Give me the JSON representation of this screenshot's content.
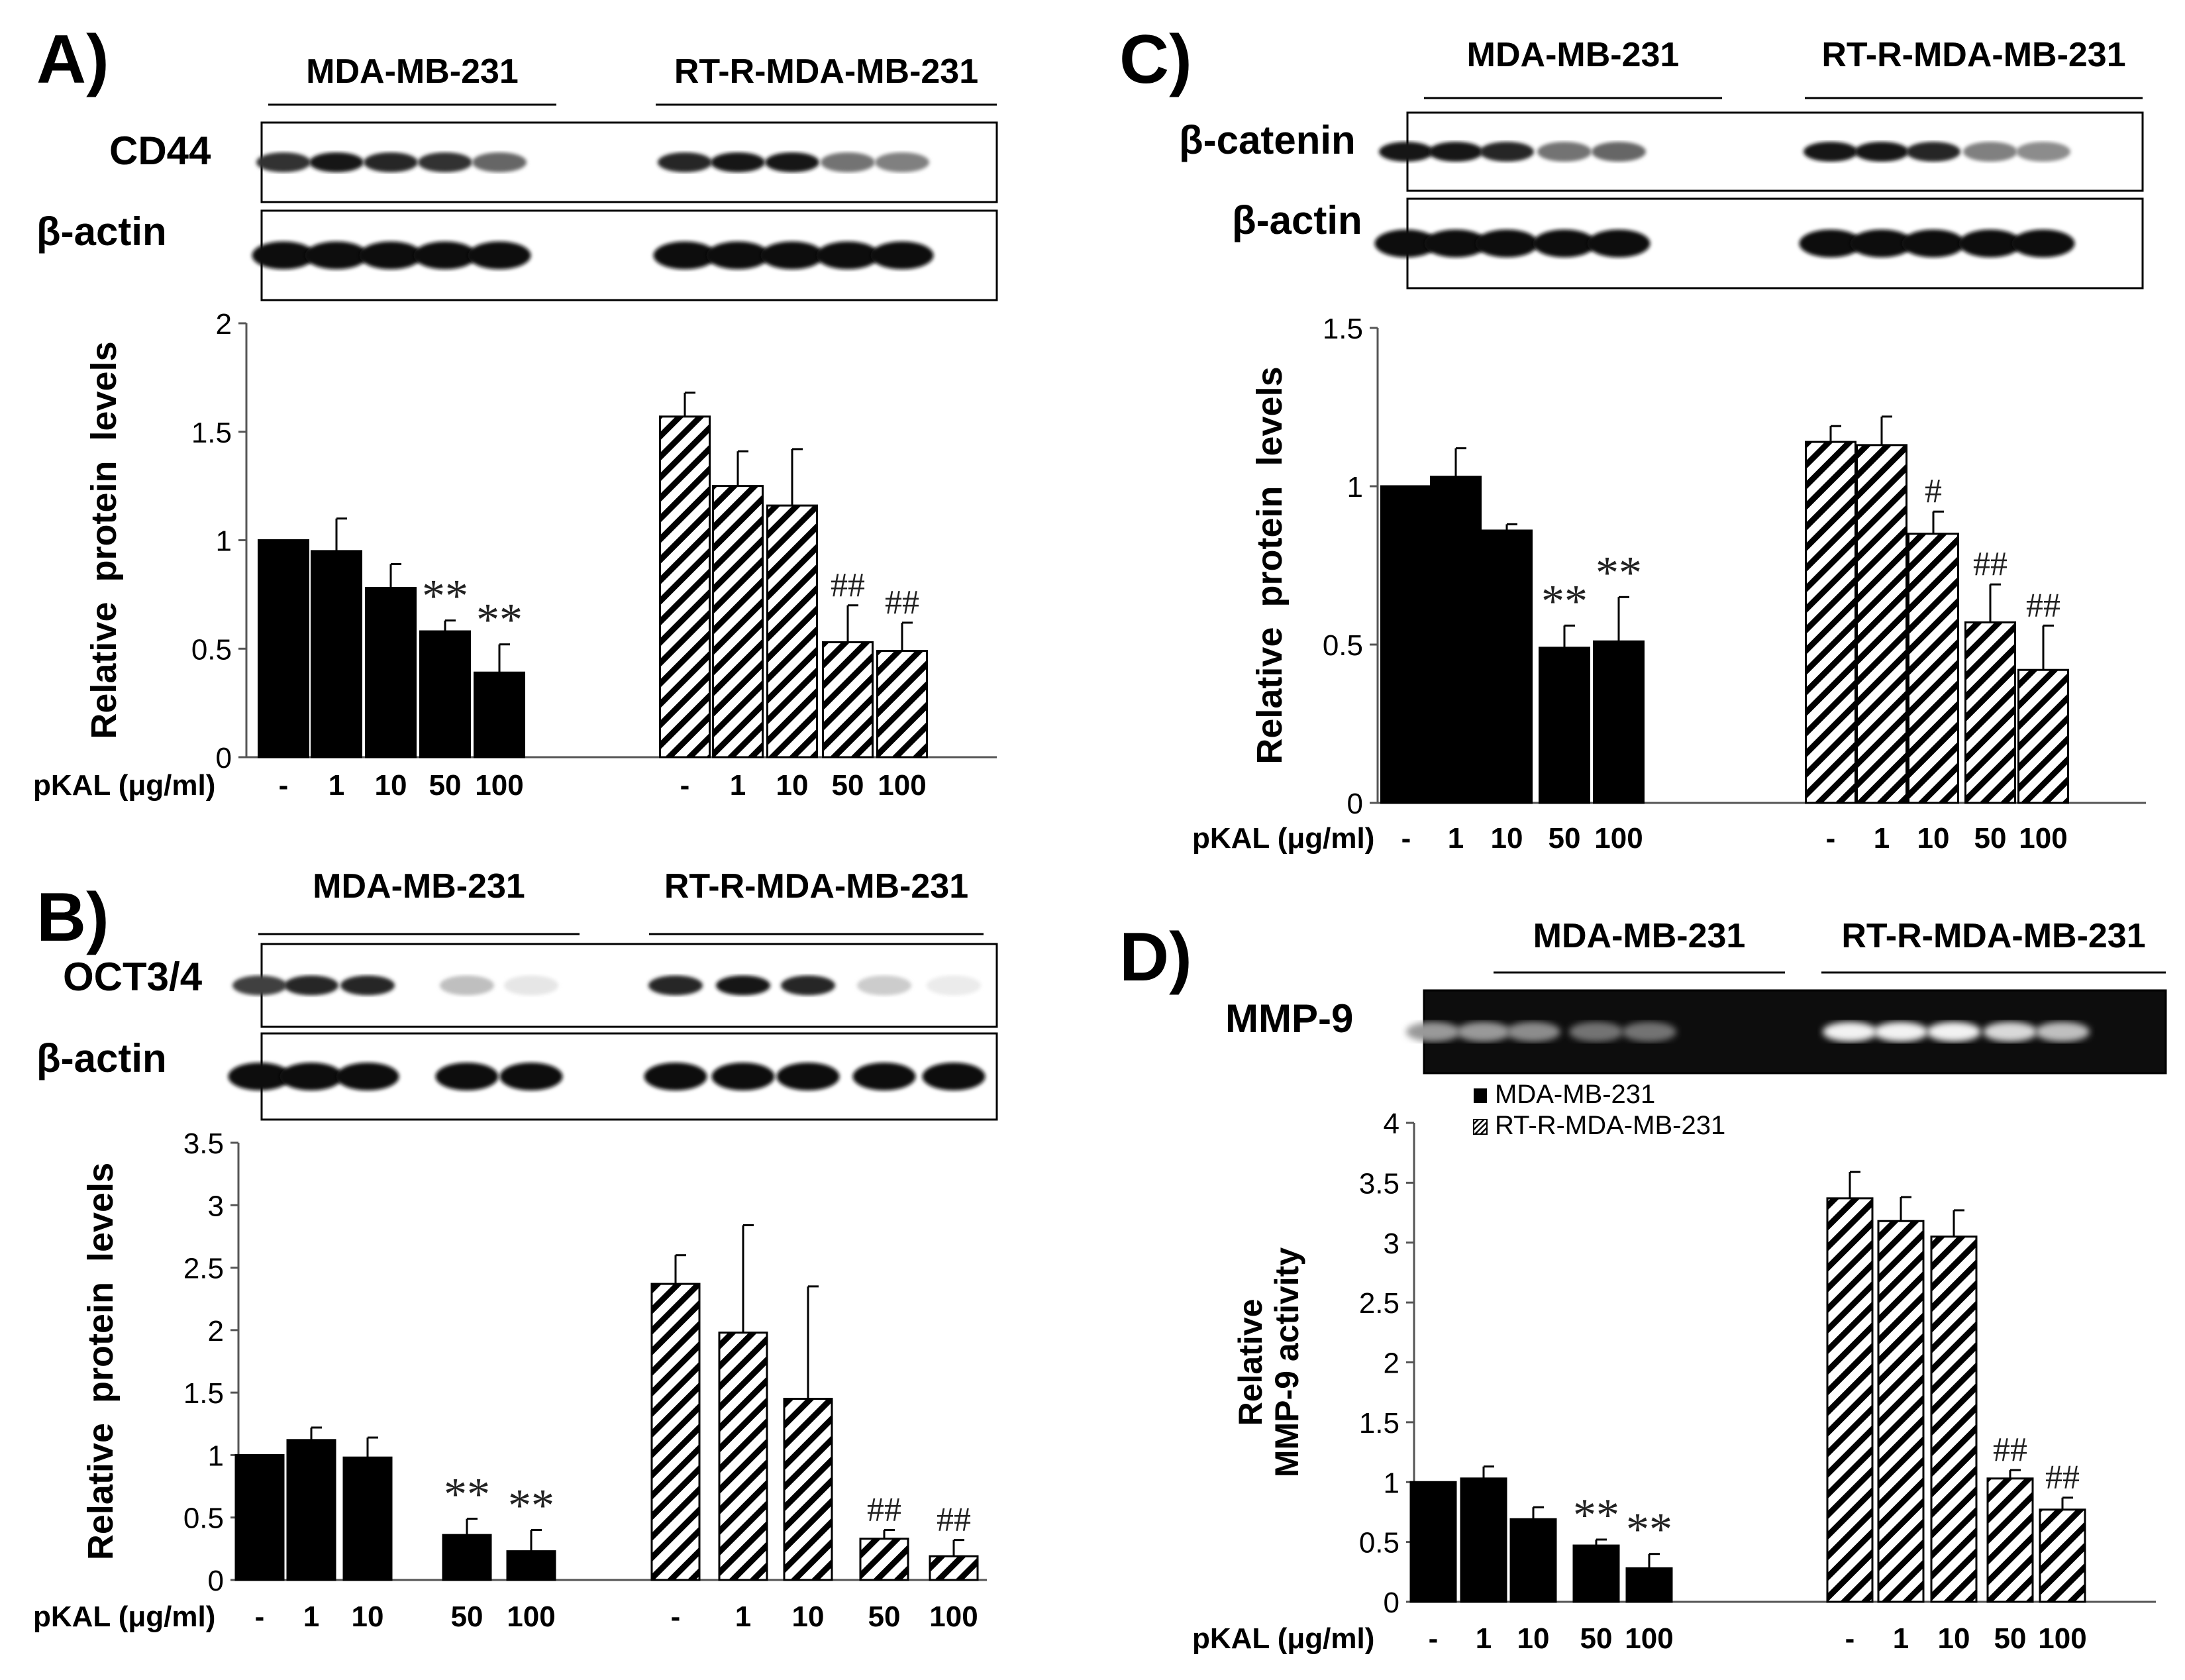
{
  "chart_data": [
    {
      "panel": "A)",
      "type": "bar",
      "blot": {
        "rows": [
          "CD44",
          "β-actin"
        ],
        "bands_a": [
          0.8,
          0.9,
          0.85,
          0.8,
          0.6
        ],
        "bands_b": [
          0.85,
          0.9,
          0.9,
          0.55,
          0.5
        ]
      },
      "groups": [
        "MDA-MB-231",
        "RT-R-MDA-MB-231"
      ],
      "xaxis_title": "pKAL (μg/ml)",
      "categories": [
        "-",
        "1",
        "10",
        "50",
        "100"
      ],
      "ylabel": [
        "Relative",
        "protein",
        "levels"
      ],
      "ylim": [
        0,
        2
      ],
      "yticks": [
        "0",
        "0.5",
        "1",
        "1.5",
        "2"
      ],
      "tick_values": [
        0,
        0.5,
        1,
        1.5,
        2
      ],
      "series": [
        {
          "values": [
            1.0,
            0.95,
            0.78,
            0.58,
            0.39
          ],
          "errors": [
            0,
            0.15,
            0.11,
            0.05,
            0.13
          ],
          "marks": [
            "",
            "",
            "",
            "**",
            "**"
          ]
        },
        {
          "values": [
            1.57,
            1.25,
            1.16,
            0.53,
            0.49
          ],
          "errors": [
            0.11,
            0.16,
            0.26,
            0.17,
            0.13
          ],
          "marks": [
            "",
            "",
            "",
            "##",
            "##"
          ]
        }
      ]
    },
    {
      "panel": "B)",
      "type": "bar",
      "blot": {
        "rows": [
          "OCT3/4",
          "β-actin"
        ],
        "bands_a": [
          0.75,
          0.85,
          0.85,
          0.25,
          0.1
        ],
        "bands_b": [
          0.85,
          0.9,
          0.85,
          0.2,
          0.08
        ]
      },
      "groups": [
        "MDA-MB-231",
        "RT-R-MDA-MB-231"
      ],
      "xaxis_title": "pKAL (μg/ml)",
      "categories": [
        "-",
        "1",
        "10",
        "50",
        "100"
      ],
      "ylabel": [
        "Relative",
        "protein",
        "levels"
      ],
      "ylim": [
        0,
        3.5
      ],
      "yticks": [
        "0",
        "0.5",
        "1",
        "1.5",
        "2",
        "2.5",
        "3",
        "3.5"
      ],
      "tick_values": [
        0,
        0.5,
        1,
        1.5,
        2,
        2.5,
        3,
        3.5
      ],
      "series": [
        {
          "values": [
            1.0,
            1.12,
            0.98,
            0.36,
            0.23
          ],
          "errors": [
            0,
            0.1,
            0.16,
            0.13,
            0.17
          ],
          "marks": [
            "",
            "",
            "",
            "**",
            "**"
          ]
        },
        {
          "values": [
            2.37,
            1.98,
            1.45,
            0.33,
            0.19
          ],
          "errors": [
            0.23,
            0.86,
            0.9,
            0.07,
            0.13
          ],
          "marks": [
            "",
            "",
            "",
            "##",
            "##"
          ]
        }
      ]
    },
    {
      "panel": "C)",
      "type": "bar",
      "blot": {
        "rows": [
          "β-catenin",
          "β-actin"
        ],
        "bands_a": [
          0.9,
          0.9,
          0.85,
          0.55,
          0.6
        ],
        "bands_b": [
          0.9,
          0.9,
          0.85,
          0.5,
          0.45
        ]
      },
      "groups": [
        "MDA-MB-231",
        "RT-R-MDA-MB-231"
      ],
      "xaxis_title": "pKAL (μg/ml)",
      "categories": [
        "-",
        "1",
        "10",
        "50",
        "100"
      ],
      "ylabel": [
        "Relative",
        "protein",
        "levels"
      ],
      "ylim": [
        0,
        1.5
      ],
      "yticks": [
        "0",
        "0.5",
        "1",
        "1.5"
      ],
      "tick_values": [
        0,
        0.5,
        1,
        1.5
      ],
      "series": [
        {
          "values": [
            1.0,
            1.03,
            0.86,
            0.49,
            0.51
          ],
          "errors": [
            0,
            0.09,
            0.02,
            0.07,
            0.14
          ],
          "marks": [
            "",
            "",
            "",
            "**",
            "**"
          ]
        },
        {
          "values": [
            1.14,
            1.13,
            0.85,
            0.57,
            0.42
          ],
          "errors": [
            0.05,
            0.09,
            0.07,
            0.12,
            0.14
          ],
          "marks": [
            "",
            "",
            "#",
            "##",
            "##"
          ]
        }
      ]
    },
    {
      "panel": "D)",
      "type": "bar",
      "blot": {
        "rows": [
          "MMP-9"
        ],
        "bands_a": [
          0.6,
          0.6,
          0.55,
          0.45,
          0.45
        ],
        "bands_b": [
          0.95,
          0.95,
          0.95,
          0.85,
          0.75
        ]
      },
      "groups": [
        "MDA-MB-231",
        "RT-R-MDA-MB-231"
      ],
      "xaxis_title": "pKAL (μg/ml)",
      "categories": [
        "-",
        "1",
        "10",
        "50",
        "100"
      ],
      "ylabel": [
        "Relative",
        "MMP-9 activity"
      ],
      "legend": [
        "MDA-MB-231",
        "RT-R-MDA-MB-231"
      ],
      "ylim": [
        0,
        4
      ],
      "yticks": [
        "0",
        "0.5",
        "1",
        "1.5",
        "2",
        "2.5",
        "3",
        "3.5",
        "4"
      ],
      "tick_values": [
        0,
        0.5,
        1,
        1.5,
        2,
        2.5,
        3,
        3.5,
        4
      ],
      "series": [
        {
          "values": [
            1.0,
            1.03,
            0.69,
            0.47,
            0.28
          ],
          "errors": [
            0,
            0.1,
            0.1,
            0.05,
            0.12
          ],
          "marks": [
            "",
            "",
            "",
            "**",
            "**"
          ]
        },
        {
          "values": [
            3.37,
            3.18,
            3.05,
            1.03,
            0.77
          ],
          "errors": [
            0.22,
            0.2,
            0.22,
            0.07,
            0.1
          ],
          "marks": [
            "",
            "",
            "",
            "##",
            "##"
          ]
        }
      ]
    }
  ]
}
